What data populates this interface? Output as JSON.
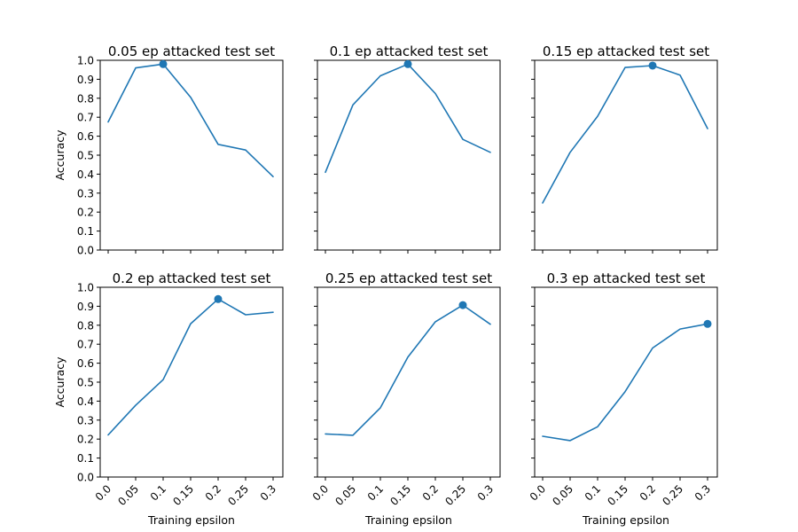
{
  "chart_data": {
    "type": "line",
    "layout": "2x3 subplots, shared axes",
    "shared_x": [
      "0.0",
      "0.05",
      "0.1",
      "0.15",
      "0.2",
      "0.25",
      "0.3"
    ],
    "y_ticks": [
      "0.0",
      "0.1",
      "0.2",
      "0.3",
      "0.4",
      "0.5",
      "0.6",
      "0.7",
      "0.8",
      "0.9",
      "1.0"
    ],
    "ylim": [
      0,
      1
    ],
    "xlabel": "Training epsilon",
    "ylabel": "Accuracy",
    "grid": false,
    "line_color": "#1f77b4",
    "panels": [
      {
        "title": "0.05 ep attacked test set",
        "values": [
          0.675,
          0.96,
          0.98,
          0.805,
          0.557,
          0.527,
          0.387
        ],
        "best_index": 2
      },
      {
        "title": "0.1 ep attacked test set",
        "values": [
          0.41,
          0.765,
          0.918,
          0.98,
          0.825,
          0.583,
          0.515
        ],
        "best_index": 3
      },
      {
        "title": "0.15 ep attacked test set",
        "values": [
          0.248,
          0.515,
          0.705,
          0.962,
          0.972,
          0.922,
          0.64
        ],
        "best_index": 4
      },
      {
        "title": "0.2 ep attacked test set",
        "values": [
          0.222,
          0.378,
          0.513,
          0.808,
          0.938,
          0.855,
          0.868
        ],
        "best_index": 4
      },
      {
        "title": "0.25 ep attacked test set",
        "values": [
          0.227,
          0.22,
          0.365,
          0.632,
          0.818,
          0.906,
          0.805
        ],
        "best_index": 5
      },
      {
        "title": "0.3 ep attacked test set",
        "values": [
          0.215,
          0.192,
          0.265,
          0.45,
          0.68,
          0.78,
          0.807
        ],
        "best_index": 6
      }
    ]
  }
}
